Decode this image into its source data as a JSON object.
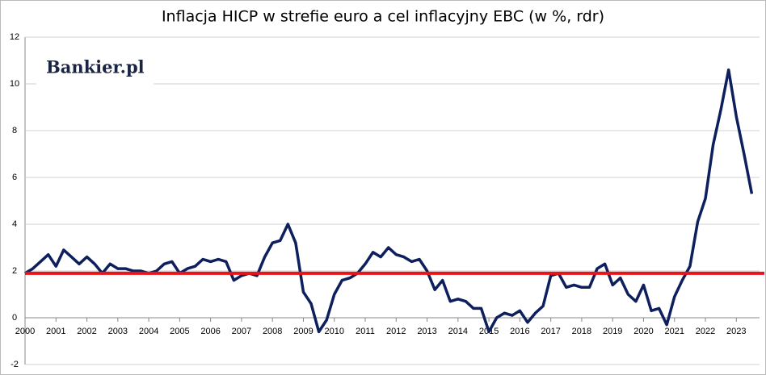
{
  "chart_data": {
    "type": "line",
    "title": "Inflacja HICP w strefie euro a cel inflacyjny EBC (w %, rdr)",
    "logo": "Bankier.pl",
    "x": [
      2000,
      2000.25,
      2000.5,
      2000.75,
      2001,
      2001.25,
      2001.5,
      2001.75,
      2002,
      2002.25,
      2002.5,
      2002.75,
      2003,
      2003.25,
      2003.5,
      2003.75,
      2004,
      2004.25,
      2004.5,
      2004.75,
      2005,
      2005.25,
      2005.5,
      2005.75,
      2006,
      2006.25,
      2006.5,
      2006.75,
      2007,
      2007.25,
      2007.5,
      2007.75,
      2008,
      2008.25,
      2008.5,
      2008.75,
      2009,
      2009.25,
      2009.5,
      2009.75,
      2010,
      2010.25,
      2010.5,
      2010.75,
      2011,
      2011.25,
      2011.5,
      2011.75,
      2012,
      2012.25,
      2012.5,
      2012.75,
      2013,
      2013.25,
      2013.5,
      2013.75,
      2014,
      2014.25,
      2014.5,
      2014.75,
      2015,
      2015.25,
      2015.5,
      2015.75,
      2016,
      2016.25,
      2016.5,
      2016.75,
      2017,
      2017.25,
      2017.5,
      2017.75,
      2018,
      2018.25,
      2018.5,
      2018.75,
      2019,
      2019.25,
      2019.5,
      2019.75,
      2020,
      2020.25,
      2020.5,
      2020.75,
      2021,
      2021.25,
      2021.5,
      2021.75,
      2022,
      2022.25,
      2022.5,
      2022.75,
      2023,
      2023.25,
      2023.5
    ],
    "series": [
      {
        "color": "#0d1f5c",
        "values": [
          1.9,
          2.1,
          2.4,
          2.7,
          2.2,
          2.9,
          2.6,
          2.3,
          2.6,
          2.3,
          1.9,
          2.3,
          2.1,
          2.1,
          2.0,
          2.0,
          1.9,
          2.0,
          2.3,
          2.4,
          1.9,
          2.1,
          2.2,
          2.5,
          2.4,
          2.5,
          2.4,
          1.6,
          1.8,
          1.9,
          1.8,
          2.6,
          3.2,
          3.3,
          4.0,
          3.2,
          1.1,
          0.6,
          -0.6,
          -0.1,
          1.0,
          1.6,
          1.7,
          1.9,
          2.3,
          2.8,
          2.6,
          3.0,
          2.7,
          2.6,
          2.4,
          2.5,
          2.0,
          1.2,
          1.6,
          0.7,
          0.8,
          0.7,
          0.4,
          0.4,
          -0.6,
          0.0,
          0.2,
          0.1,
          0.3,
          -0.2,
          0.2,
          0.5,
          1.8,
          1.9,
          1.3,
          1.4,
          1.3,
          1.3,
          2.1,
          2.3,
          1.4,
          1.7,
          1.0,
          0.7,
          1.4,
          0.3,
          0.4,
          -0.3,
          0.9,
          1.6,
          2.2,
          4.1,
          5.1,
          7.4,
          8.9,
          10.6,
          8.6,
          7.0,
          5.3
        ]
      }
    ],
    "target": {
      "value": 1.9,
      "color": "#e8141a"
    },
    "xlim": [
      2000,
      2023.75
    ],
    "xticks": [
      2000,
      2001,
      2002,
      2003,
      2004,
      2005,
      2006,
      2007,
      2008,
      2009,
      2010,
      2011,
      2012,
      2013,
      2014,
      2015,
      2016,
      2017,
      2018,
      2019,
      2020,
      2021,
      2022,
      2023
    ],
    "ylim": [
      -2,
      12
    ],
    "yticks": [
      -2,
      0,
      2,
      4,
      6,
      8,
      10,
      12
    ],
    "grid": true
  }
}
